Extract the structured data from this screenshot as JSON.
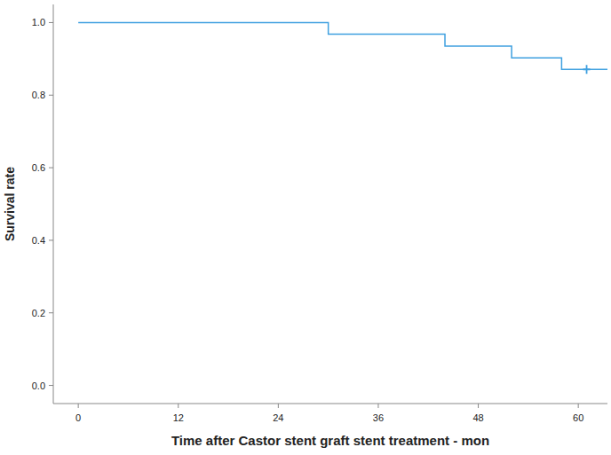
{
  "chart_data": {
    "type": "line",
    "xlabel": "Time after Castor stent graft stent treatment - mon",
    "ylabel": "Survival rate",
    "series": [
      {
        "type": "step",
        "color": "#3fa0e0",
        "x": [
          0,
          30,
          44,
          52,
          58,
          61
        ],
        "values": [
          1.0,
          0.968,
          0.935,
          0.903,
          0.871,
          0.871
        ]
      },
      {
        "type": "scatter",
        "marker": "plus",
        "color": "#3fa0e0",
        "x": [
          61
        ],
        "values": [
          0.871
        ]
      }
    ],
    "xlim": [
      -3,
      63.5
    ],
    "xticks": [
      0,
      12,
      24,
      36,
      48,
      60
    ],
    "ylim": [
      -0.05,
      1.05
    ],
    "yticks": [
      {
        "value": 0,
        "label": "0.0"
      },
      {
        "value": 0.2,
        "label": "0.2"
      },
      {
        "value": 0.4,
        "label": "0.4"
      },
      {
        "value": 0.6,
        "label": "0.6"
      },
      {
        "value": 0.8,
        "label": "0.8"
      },
      {
        "value": 1.0,
        "label": "1.0"
      }
    ],
    "grid": false
  }
}
